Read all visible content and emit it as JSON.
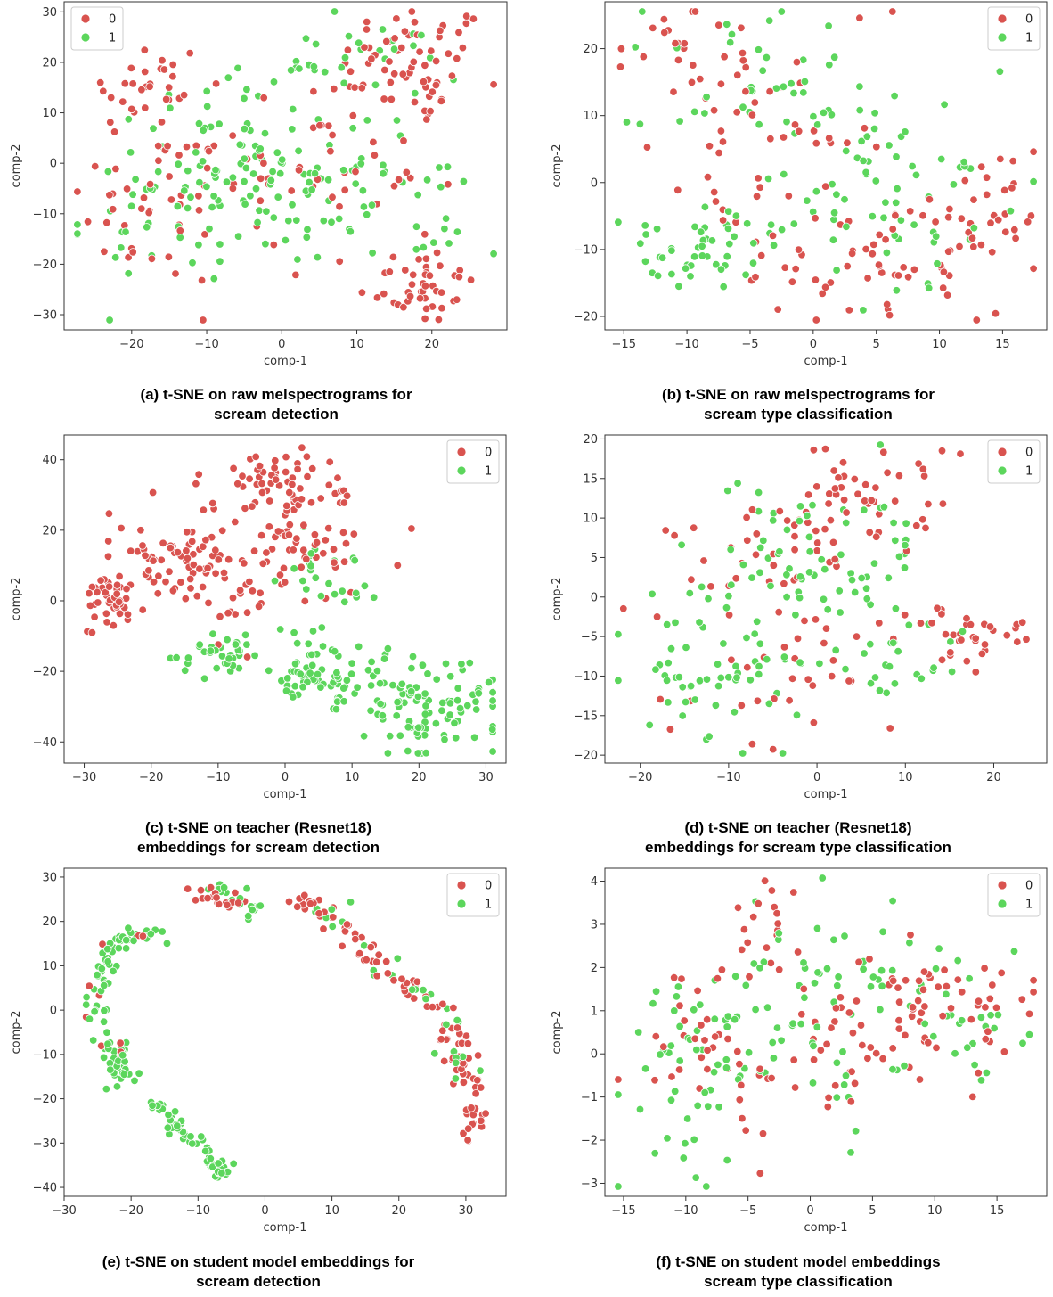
{
  "colors": {
    "class0": "#d9534f",
    "class1": "#5cd65c"
  },
  "chart_data": [
    {
      "id": "a",
      "type": "scatter",
      "caption": [
        "(a) t-SNE on raw melspectrograms for",
        "scream detection"
      ],
      "xlabel": "comp-1",
      "ylabel": "comp-2",
      "xlim": [
        -29,
        30
      ],
      "ylim": [
        -33,
        32
      ],
      "xticks": [
        -20,
        -10,
        0,
        10,
        20
      ],
      "yticks": [
        -30,
        -20,
        -10,
        0,
        10,
        20,
        30
      ],
      "legend": {
        "position": "top-left",
        "entries": [
          "0",
          "1"
        ]
      },
      "clusters": [
        {
          "cls": 0,
          "cx": 18,
          "cy": 20,
          "sx": 5,
          "sy": 6,
          "n": 60
        },
        {
          "cls": 0,
          "cx": 18,
          "cy": -24,
          "sx": 4,
          "sy": 4,
          "n": 45
        },
        {
          "cls": 0,
          "cx": -18,
          "cy": 15,
          "sx": 4,
          "sy": 5,
          "n": 30
        },
        {
          "cls": 0,
          "cx": -18,
          "cy": -8,
          "sx": 5,
          "sy": 8,
          "n": 35
        },
        {
          "cls": 0,
          "cx": 5,
          "cy": 0,
          "sx": 10,
          "sy": 10,
          "n": 60
        },
        {
          "cls": 1,
          "cx": -3,
          "cy": -2,
          "sx": 8,
          "sy": 9,
          "n": 130
        },
        {
          "cls": 1,
          "cx": 8,
          "cy": 20,
          "sx": 8,
          "sy": 4,
          "n": 30
        },
        {
          "cls": 1,
          "cx": 18,
          "cy": -10,
          "sx": 6,
          "sy": 7,
          "n": 20
        },
        {
          "cls": 1,
          "cx": -18,
          "cy": -10,
          "sx": 6,
          "sy": 10,
          "n": 20
        }
      ]
    },
    {
      "id": "b",
      "type": "scatter",
      "caption": [
        "(b) t-SNE on raw melspectrograms for",
        "scream type classification"
      ],
      "xlabel": "comp-1",
      "ylabel": "comp-2",
      "xlim": [
        -16.5,
        18.5
      ],
      "ylim": [
        -22,
        27
      ],
      "xticks": [
        -15,
        -10,
        -5,
        0,
        5,
        10,
        15
      ],
      "yticks": [
        -20,
        -10,
        0,
        10,
        20
      ],
      "legend": {
        "position": "top-right",
        "entries": [
          "0",
          "1"
        ]
      },
      "clusters": [
        {
          "cls": 0,
          "cx": -10,
          "cy": 22,
          "sx": 3,
          "sy": 3,
          "n": 20
        },
        {
          "cls": 0,
          "cx": 5,
          "cy": -12,
          "sx": 6,
          "sy": 5,
          "n": 60
        },
        {
          "cls": 0,
          "cx": 13,
          "cy": -4,
          "sx": 3,
          "sy": 5,
          "n": 25
        },
        {
          "cls": 0,
          "cx": -4,
          "cy": 4,
          "sx": 5,
          "sy": 8,
          "n": 50
        },
        {
          "cls": 1,
          "cx": -9,
          "cy": -10,
          "sx": 3,
          "sy": 4,
          "n": 45
        },
        {
          "cls": 1,
          "cx": -3,
          "cy": 15,
          "sx": 5,
          "sy": 5,
          "n": 40
        },
        {
          "cls": 1,
          "cx": 6,
          "cy": -2,
          "sx": 6,
          "sy": 8,
          "n": 70
        }
      ]
    },
    {
      "id": "c",
      "type": "scatter",
      "caption": [
        "(c) t-SNE on teacher (Resnet18)",
        "embeddings for scream detection"
      ],
      "xlabel": "comp-1",
      "ylabel": "comp-2",
      "xlim": [
        -33,
        33
      ],
      "ylim": [
        -46,
        47
      ],
      "xticks": [
        -30,
        -20,
        -10,
        0,
        10,
        20,
        30
      ],
      "yticks": [
        -40,
        -20,
        0,
        20,
        40
      ],
      "legend": {
        "position": "top-right",
        "entries": [
          "0",
          "1"
        ]
      },
      "clusters": [
        {
          "cls": 0,
          "cx": -27,
          "cy": 0,
          "sx": 2,
          "sy": 5,
          "n": 45
        },
        {
          "cls": 0,
          "cx": -20,
          "cy": 14,
          "sx": 3,
          "sy": 5,
          "n": 25
        },
        {
          "cls": 0,
          "cx": -10,
          "cy": 10,
          "sx": 5,
          "sy": 9,
          "n": 70
        },
        {
          "cls": 0,
          "cx": 0,
          "cy": 32,
          "sx": 4,
          "sy": 6,
          "n": 60
        },
        {
          "cls": 0,
          "cx": 3,
          "cy": 15,
          "sx": 5,
          "sy": 8,
          "n": 45
        },
        {
          "cls": 1,
          "cx": -10,
          "cy": -15,
          "sx": 4,
          "sy": 4,
          "n": 35
        },
        {
          "cls": 1,
          "cx": 5,
          "cy": -22,
          "sx": 4,
          "sy": 5,
          "n": 55
        },
        {
          "cls": 1,
          "cx": 20,
          "cy": -30,
          "sx": 6,
          "sy": 7,
          "n": 110
        },
        {
          "cls": 1,
          "cx": 7,
          "cy": 5,
          "sx": 4,
          "sy": 9,
          "n": 30
        }
      ]
    },
    {
      "id": "d",
      "type": "scatter",
      "caption": [
        "(d) t-SNE on teacher (Resnet18)",
        "embeddings for scream type classification"
      ],
      "xlabel": "comp-1",
      "ylabel": "comp-2",
      "xlim": [
        -24,
        26
      ],
      "ylim": [
        -21,
        20.5
      ],
      "xticks": [
        -20,
        -10,
        0,
        10,
        20
      ],
      "yticks": [
        -20,
        -15,
        -10,
        -5,
        0,
        5,
        10,
        15,
        20
      ],
      "legend": {
        "position": "top-right",
        "entries": [
          "0",
          "1"
        ]
      },
      "clusters": [
        {
          "cls": 0,
          "cx": 18,
          "cy": -5,
          "sx": 4,
          "sy": 2,
          "n": 35
        },
        {
          "cls": 0,
          "cx": 3,
          "cy": 12,
          "sx": 5,
          "sy": 4,
          "n": 55
        },
        {
          "cls": 0,
          "cx": -6,
          "cy": 4,
          "sx": 5,
          "sy": 5,
          "n": 30
        },
        {
          "cls": 0,
          "cx": -5,
          "cy": -10,
          "sx": 7,
          "sy": 4,
          "n": 30
        },
        {
          "cls": 1,
          "cx": -12,
          "cy": -8,
          "sx": 5,
          "sy": 6,
          "n": 60
        },
        {
          "cls": 1,
          "cx": 0,
          "cy": 5,
          "sx": 6,
          "sy": 6,
          "n": 70
        },
        {
          "cls": 1,
          "cx": 8,
          "cy": -8,
          "sx": 4,
          "sy": 3,
          "n": 25
        }
      ]
    },
    {
      "id": "e",
      "type": "scatter",
      "caption": [
        "(e) t-SNE on student model  embeddings for",
        "scream detection"
      ],
      "xlabel": "comp-1",
      "ylabel": "comp-2",
      "xlim": [
        -30,
        36
      ],
      "ylim": [
        -42,
        32
      ],
      "xticks": [
        -30,
        -20,
        -10,
        0,
        10,
        20,
        30
      ],
      "yticks": [
        -40,
        -30,
        -20,
        -10,
        0,
        10,
        20,
        30
      ],
      "legend": {
        "position": "top-right",
        "entries": [
          "0",
          "1"
        ]
      },
      "arcs": [
        {
          "cls": 1,
          "path": [
            [
              -8,
              27
            ],
            [
              -4,
              27
            ],
            [
              -2,
              22
            ]
          ],
          "n": 22,
          "spread": 1.2
        },
        {
          "cls": 0,
          "path": [
            [
              -10,
              26
            ],
            [
              -6,
              25
            ],
            [
              -3,
              23
            ]
          ],
          "n": 20,
          "spread": 1.2
        },
        {
          "cls": 0,
          "path": [
            [
              4,
              25
            ],
            [
              8,
              24
            ],
            [
              12,
              18
            ],
            [
              16,
              12
            ],
            [
              20,
              6
            ],
            [
              24,
              2
            ],
            [
              27,
              -4
            ],
            [
              29,
              -8
            ],
            [
              30,
              -14
            ],
            [
              31,
              -22
            ],
            [
              31,
              -28
            ]
          ],
          "n": 110,
          "spread": 1.2
        },
        {
          "cls": 1,
          "path": [
            [
              8,
              25
            ],
            [
              12,
              19
            ],
            [
              18,
              11
            ],
            [
              22,
              6
            ],
            [
              26,
              0
            ],
            [
              28,
              -8
            ],
            [
              30,
              -14
            ]
          ],
          "n": 30,
          "spread": 1.6
        },
        {
          "cls": 1,
          "path": [
            [
              -16,
              17
            ],
            [
              -21,
              16
            ],
            [
              -24,
              12
            ],
            [
              -25,
              2
            ],
            [
              -24,
              -6
            ],
            [
              -22,
              -12
            ],
            [
              -20,
              -16
            ]
          ],
          "n": 90,
          "spread": 1.2
        },
        {
          "cls": 0,
          "path": [
            [
              -18,
              17
            ],
            [
              -23,
              14
            ],
            [
              -25,
              4
            ],
            [
              -23,
              -8
            ],
            [
              -20,
              -16
            ]
          ],
          "n": 10,
          "spread": 1.5
        },
        {
          "cls": 1,
          "path": [
            [
              -16,
              -20
            ],
            [
              -14,
              -25
            ],
            [
              -10,
              -30
            ],
            [
              -7,
              -35
            ],
            [
              -5,
              -38
            ]
          ],
          "n": 55,
          "spread": 0.9
        }
      ]
    },
    {
      "id": "f",
      "type": "scatter",
      "caption": [
        "(f) t-SNE on student model  embeddings",
        "scream type classification"
      ],
      "xlabel": "comp-1",
      "ylabel": "comp-2",
      "xlim": [
        -16.5,
        19
      ],
      "ylim": [
        -3.3,
        4.3
      ],
      "xticks": [
        -15,
        -10,
        -5,
        0,
        5,
        10,
        15
      ],
      "yticks": [
        -3,
        -2,
        -1,
        0,
        1,
        2,
        3,
        4
      ],
      "legend": {
        "position": "top-right",
        "entries": [
          "0",
          "1"
        ]
      },
      "clusters": [
        {
          "cls": 0,
          "cx": -3,
          "cy": 2.8,
          "sx": 1.5,
          "sy": 0.6,
          "n": 20
        },
        {
          "cls": 0,
          "cx": 10,
          "cy": 1.0,
          "sx": 4,
          "sy": 0.7,
          "n": 60
        },
        {
          "cls": 0,
          "cx": -8,
          "cy": 0,
          "sx": 4,
          "sy": 1.3,
          "n": 40
        },
        {
          "cls": 0,
          "cx": 3,
          "cy": 0.2,
          "sx": 4,
          "sy": 1,
          "n": 25
        },
        {
          "cls": 1,
          "cx": -10,
          "cy": -0.5,
          "sx": 3,
          "sy": 1.2,
          "n": 45
        },
        {
          "cls": 1,
          "cx": 0,
          "cy": 1.0,
          "sx": 5,
          "sy": 1.2,
          "n": 70
        },
        {
          "cls": 1,
          "cx": 12,
          "cy": 1.0,
          "sx": 4,
          "sy": 0.8,
          "n": 30
        }
      ]
    }
  ]
}
